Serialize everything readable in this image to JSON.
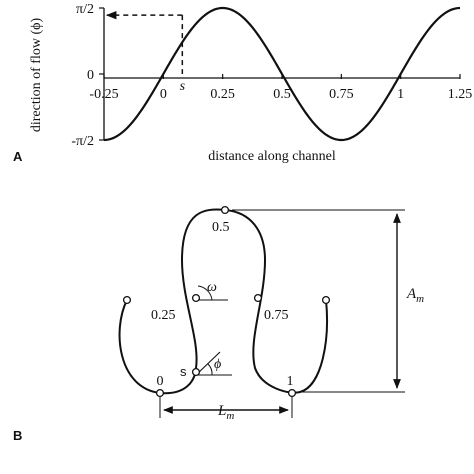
{
  "panel_a": {
    "panel_label": "A",
    "ylabel": "direction of flow (ϕ)",
    "xlabel": "distance along channel",
    "s_label": "s",
    "x_ticks": [
      "-0.25",
      "0",
      "0.25",
      "0.5",
      "0.75",
      "1",
      "1.25"
    ],
    "y_ticks": [
      "π/2",
      "0",
      "-π/2"
    ]
  },
  "panel_b": {
    "panel_label": "B",
    "labels": {
      "p0": "0",
      "p025": "0.25",
      "p05": "0.5",
      "p075": "0.75",
      "p1": "1",
      "s": "s",
      "omega": "ω",
      "phi": "ϕ",
      "amplitude": "A",
      "amplitude_sub": "m",
      "wavelength": "L",
      "wavelength_sub": "m"
    }
  },
  "chart_data": {
    "type": "line",
    "xlabel": "distance along channel",
    "ylabel": "direction of flow (ϕ)",
    "xlim": [
      -0.25,
      1.25
    ],
    "ylim": [
      -1.5708,
      1.5708
    ],
    "x_ticks": [
      -0.25,
      0,
      0.25,
      0.5,
      0.75,
      1,
      1.25
    ],
    "y_ticks": [
      "π/2",
      "0",
      "-π/2"
    ],
    "series": [
      {
        "x": [
          -0.25,
          -0.125,
          0,
          0.125,
          0.25,
          0.375,
          0.5,
          0.625,
          0.75,
          0.875,
          1,
          1.125,
          1.25
        ],
        "y": [
          -1.5708,
          -1.1107,
          0,
          1.1107,
          1.5708,
          1.1107,
          0,
          -1.1107,
          -1.5708,
          -1.1107,
          0,
          1.1107,
          1.5708
        ]
      }
    ],
    "annotation": {
      "label": "s",
      "x": 0.08,
      "y": 1.4
    }
  }
}
